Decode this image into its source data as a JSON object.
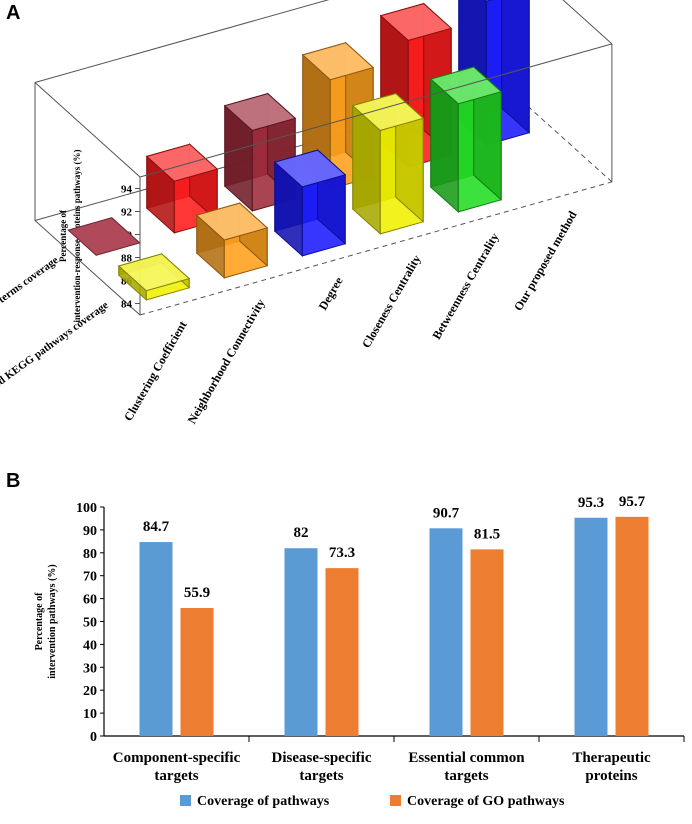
{
  "panel_a_label": "A",
  "panel_b_label": "B",
  "chart_data": [
    {
      "type": "bar",
      "panel": "A",
      "projection": "3d",
      "title": "",
      "ylabel": "Percentage of intervention-response proteins pathways (%)",
      "ylim": [
        83,
        95
      ],
      "yticks": [
        84,
        86,
        88,
        90,
        92,
        94
      ],
      "categories": [
        "Clustering Coefficient",
        "Neighborhood Connectivity",
        "Degree",
        "Closeness Centrality",
        "Betweenness Centrality",
        "Our proposed method"
      ],
      "series": [
        {
          "name": "Enriched KEGG pathways coverage",
          "values": [
            null,
            87.5,
            90.0,
            92.5,
            94.0,
            95.5
          ]
        },
        {
          "name": "Enriched GO terms coverage",
          "values": [
            83.8,
            86.3,
            89.0,
            92.0,
            92.4,
            null
          ]
        }
      ],
      "row_labels": [
        "Enriched KEGG pathways coverage",
        "Enriched GO terms coverage"
      ],
      "colors": {
        "kegg": [
          "#9e2a3a",
          "#ff1a1a",
          "#9e2a3a",
          "#ff9f1a",
          "#ff1a1a",
          "#1a1aff"
        ],
        "go": [
          "#f0f000",
          "#ff9f1a",
          "#1a1aff",
          "#f0f000",
          "#22dd22",
          "#22dd22"
        ]
      }
    },
    {
      "type": "bar",
      "panel": "B",
      "title": "",
      "xlabel": "",
      "ylabel": "Percentage of intervention pathways (%)",
      "ylim": [
        0,
        100
      ],
      "yticks": [
        0,
        10,
        20,
        30,
        40,
        50,
        60,
        70,
        80,
        90,
        100
      ],
      "categories": [
        "Component-specific targets",
        "Disease-specific targets",
        "Essential common targets",
        "Therapeutic proteins"
      ],
      "category_lines": [
        [
          "Component-specific",
          "targets"
        ],
        [
          "Disease-specific",
          "targets"
        ],
        [
          "Essential common",
          "targets"
        ],
        [
          "Therapeutic",
          "proteins"
        ]
      ],
      "series": [
        {
          "name": "Coverage of pathways",
          "color": "#5b9bd5",
          "values": [
            84.7,
            82,
            90.7,
            95.3
          ],
          "labels": [
            "84.7",
            "82",
            "90.7",
            "95.3"
          ]
        },
        {
          "name": "Coverage of GO pathways",
          "color": "#ed7d31",
          "values": [
            55.9,
            73.3,
            81.5,
            95.7
          ],
          "labels": [
            "55.9",
            "73.3",
            "81.5",
            "95.7"
          ]
        }
      ],
      "legend": "bottom"
    }
  ]
}
